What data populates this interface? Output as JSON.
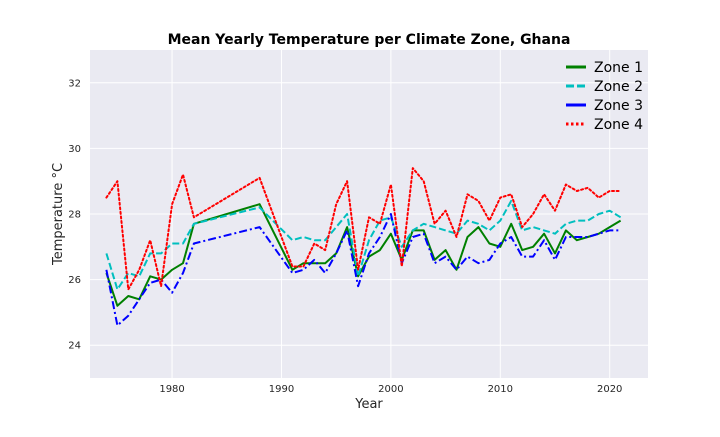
{
  "chart_data": {
    "type": "line",
    "title": "Mean Yearly Temperature per Climate Zone, Ghana",
    "xlabel": "Year",
    "ylabel": "Temperature °C",
    "xlim": [
      1972.5,
      2023.5
    ],
    "ylim": [
      23.0,
      33.0
    ],
    "xticks": [
      1980,
      1990,
      2000,
      2010,
      2020
    ],
    "yticks": [
      24,
      26,
      28,
      30,
      32
    ],
    "grid": true,
    "legend_position": "top-right",
    "x": [
      1974,
      1975,
      1976,
      1977,
      1978,
      1979,
      1980,
      1981,
      1982,
      1988,
      1991,
      1992,
      1993,
      1994,
      1995,
      1996,
      1997,
      1998,
      1999,
      2000,
      2001,
      2002,
      2003,
      2004,
      2005,
      2006,
      2007,
      2008,
      2009,
      2010,
      2011,
      2012,
      2013,
      2014,
      2015,
      2016,
      2017,
      2018,
      2019,
      2020,
      2021
    ],
    "series": [
      {
        "name": "Zone 1",
        "color": "#008000",
        "dash": "solid",
        "values": [
          26.2,
          25.2,
          25.5,
          25.4,
          26.1,
          26.0,
          26.3,
          26.5,
          27.7,
          28.3,
          26.3,
          26.5,
          26.5,
          26.5,
          26.8,
          27.6,
          26.1,
          26.7,
          26.9,
          27.4,
          26.6,
          27.5,
          27.5,
          26.6,
          26.9,
          26.3,
          27.3,
          27.6,
          27.1,
          27.0,
          27.7,
          26.9,
          27.0,
          27.4,
          26.8,
          27.5,
          27.2,
          27.3,
          27.4,
          27.6,
          27.8
        ]
      },
      {
        "name": "Zone 2",
        "color": "#00bfbf",
        "dash": "dashed",
        "values": [
          26.8,
          25.7,
          26.2,
          26.1,
          26.8,
          26.8,
          27.1,
          27.1,
          27.7,
          28.2,
          27.2,
          27.3,
          27.2,
          27.2,
          27.6,
          28.0,
          26.1,
          27.2,
          27.8,
          27.9,
          27.0,
          27.5,
          27.7,
          27.6,
          27.5,
          27.4,
          27.8,
          27.7,
          27.5,
          27.8,
          28.4,
          27.5,
          27.6,
          27.5,
          27.4,
          27.7,
          27.8,
          27.8,
          28.0,
          28.1,
          27.9
        ]
      },
      {
        "name": "Zone 3",
        "color": "#0000ff",
        "dash": "dashdot",
        "values": [
          26.3,
          24.6,
          24.9,
          25.4,
          25.9,
          26.0,
          25.6,
          26.2,
          27.1,
          27.6,
          26.2,
          26.3,
          26.6,
          26.2,
          26.8,
          27.5,
          25.8,
          26.8,
          27.3,
          28.0,
          26.5,
          27.3,
          27.4,
          26.5,
          26.7,
          26.3,
          26.7,
          26.5,
          26.6,
          27.1,
          27.3,
          26.7,
          26.7,
          27.2,
          26.6,
          27.3,
          27.3,
          27.3,
          27.4,
          27.5,
          27.5
        ]
      },
      {
        "name": "Zone 4",
        "color": "#ff0000",
        "dash": "dotted",
        "values": [
          28.5,
          29.0,
          25.7,
          26.3,
          27.2,
          25.8,
          28.3,
          29.2,
          27.9,
          29.1,
          26.4,
          26.4,
          27.1,
          26.9,
          28.3,
          29.0,
          26.3,
          27.9,
          27.7,
          28.9,
          26.4,
          29.4,
          29.0,
          27.7,
          28.1,
          27.3,
          28.6,
          28.4,
          27.8,
          28.5,
          28.6,
          27.6,
          28.0,
          28.6,
          28.1,
          28.9,
          28.7,
          28.8,
          28.5,
          28.7,
          28.7
        ]
      }
    ]
  }
}
